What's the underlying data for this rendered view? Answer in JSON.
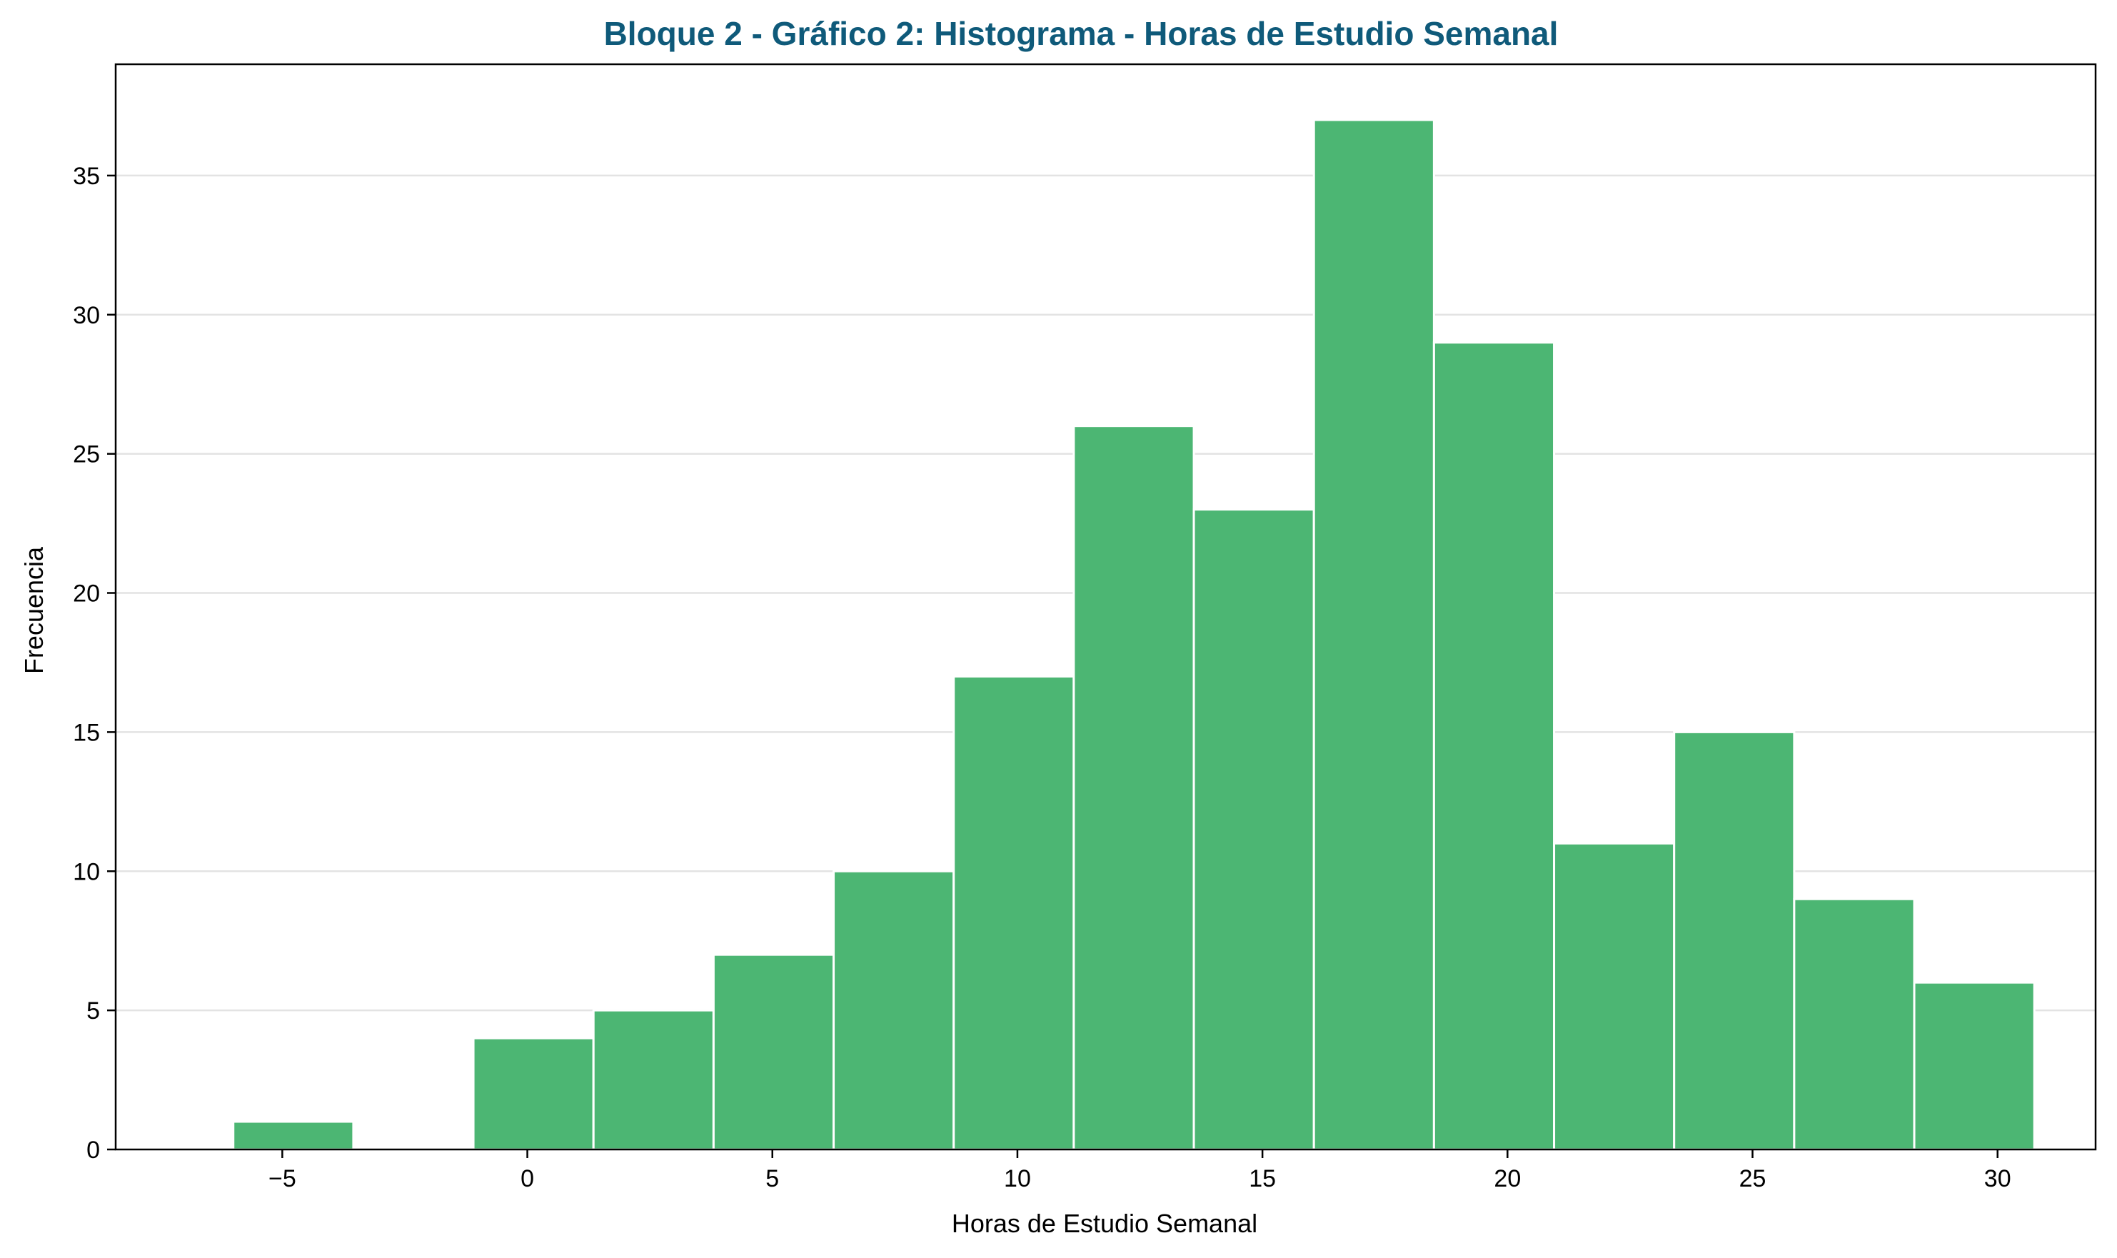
{
  "chart_data": {
    "type": "bar",
    "subtype": "histogram",
    "title": "Bloque 2 - Gráfico 2: Histograma - Horas de Estudio Semanal",
    "xlabel": "Horas de Estudio Semanal",
    "ylabel": "Frecuencia",
    "bin_start": -6.0,
    "bin_width": 2.45,
    "counts": [
      1,
      0,
      4,
      5,
      7,
      10,
      17,
      26,
      23,
      37,
      29,
      11,
      15,
      9,
      6
    ],
    "xlim": [
      -8.4,
      32.0
    ],
    "ylim": [
      0,
      39
    ],
    "x_ticks": [
      -5,
      0,
      5,
      10,
      15,
      20,
      25,
      30
    ],
    "x_tick_labels": [
      "−5",
      "0",
      "5",
      "10",
      "15",
      "20",
      "25",
      "30"
    ],
    "y_ticks": [
      0,
      5,
      10,
      15,
      20,
      25,
      30,
      35
    ],
    "y_tick_labels": [
      "0",
      "5",
      "10",
      "15",
      "20",
      "25",
      "30",
      "35"
    ],
    "grid": "y-axis",
    "colors": {
      "bar": "#4cb673",
      "bar_edge": "#ffffff",
      "title": "#0f5a7a",
      "grid": "#e3e3e3",
      "axis": "#000000"
    }
  }
}
